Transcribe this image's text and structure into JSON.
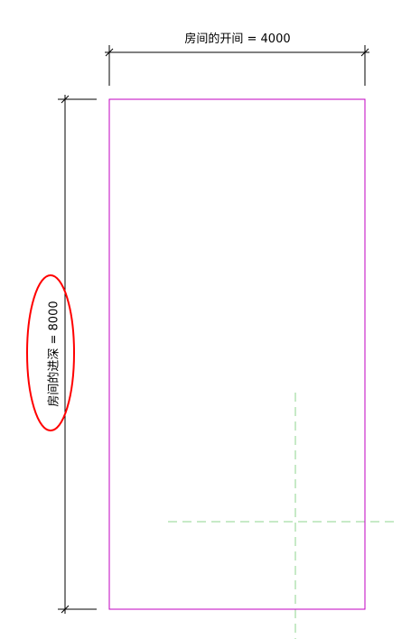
{
  "dimensions": {
    "width_label": "房间的开间 = 4000",
    "depth_label": "房间的进深 = 8000"
  },
  "colors": {
    "room_outline": "#c000c0",
    "dimension_line": "#000000",
    "reference_line": "#8fd48f",
    "highlight_ellipse": "#ff0000"
  }
}
